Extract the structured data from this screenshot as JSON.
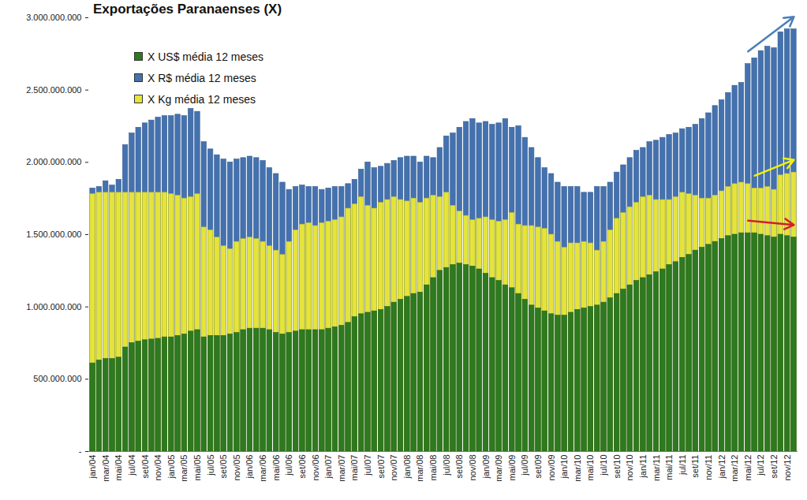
{
  "chart_data": {
    "type": "bar",
    "title": "Exportações Paranaenses (X)",
    "stacked": false,
    "grid": false,
    "legend": "top-left",
    "categories": [
      "jan/04",
      null,
      "mar/04",
      null,
      "mai/04",
      null,
      "jul/04",
      null,
      "set/04",
      null,
      "nov/04",
      null,
      "jan/05",
      null,
      "mar/05",
      null,
      "mai/05",
      null,
      "jul/05",
      null,
      "set/05",
      null,
      "nov/05",
      null,
      "jan/06",
      null,
      "mar/06",
      null,
      "mai/06",
      null,
      "jul/06",
      null,
      "set/06",
      null,
      "nov/06",
      null,
      "jan/07",
      null,
      "mar/07",
      null,
      "mai/07",
      null,
      "jul/07",
      null,
      "set/07",
      null,
      "nov/07",
      null,
      "jan/08",
      null,
      "mar/08",
      null,
      "mai/08",
      null,
      "jul/08",
      null,
      "set/08",
      null,
      "nov/08",
      null,
      "jan/09",
      null,
      "mar/09",
      null,
      "mai/09",
      null,
      "jul/09",
      null,
      "set/09",
      null,
      "nov/09",
      null,
      "jan/10",
      null,
      "mar/10",
      null,
      "mai/10",
      null,
      "jul/10",
      null,
      "set/10",
      null,
      "nov/10",
      null,
      "jan/11",
      null,
      "mar/11",
      null,
      "mai/11",
      null,
      "jul/11",
      null,
      "set/11",
      null,
      "nov/11",
      null,
      "jan/12",
      null,
      "mar/12",
      null,
      "mai/12",
      null,
      "jul/12",
      null,
      "set/12",
      null,
      "nov/12",
      null
    ],
    "series": [
      {
        "name": "X US$ média 12 meses",
        "color": "#2d7a1f",
        "values": [
          610000000,
          630000000,
          640000000,
          640000000,
          650000000,
          720000000,
          750000000,
          760000000,
          770000000,
          775000000,
          780000000,
          790000000,
          790000000,
          800000000,
          810000000,
          830000000,
          840000000,
          790000000,
          800000000,
          800000000,
          800000000,
          810000000,
          820000000,
          840000000,
          850000000,
          850000000,
          850000000,
          840000000,
          820000000,
          810000000,
          820000000,
          830000000,
          840000000,
          840000000,
          840000000,
          840000000,
          850000000,
          860000000,
          870000000,
          890000000,
          930000000,
          950000000,
          960000000,
          970000000,
          980000000,
          1000000000,
          1030000000,
          1050000000,
          1070000000,
          1090000000,
          1100000000,
          1150000000,
          1200000000,
          1250000000,
          1270000000,
          1290000000,
          1300000000,
          1290000000,
          1280000000,
          1260000000,
          1230000000,
          1200000000,
          1180000000,
          1150000000,
          1130000000,
          1090000000,
          1050000000,
          1010000000,
          990000000,
          970000000,
          950000000,
          940000000,
          940000000,
          960000000,
          980000000,
          990000000,
          1000000000,
          1010000000,
          1030000000,
          1060000000,
          1090000000,
          1120000000,
          1150000000,
          1180000000,
          1200000000,
          1220000000,
          1240000000,
          1260000000,
          1290000000,
          1310000000,
          1340000000,
          1360000000,
          1390000000,
          1410000000,
          1430000000,
          1450000000,
          1470000000,
          1490000000,
          1500000000,
          1510000000,
          1510000000,
          1510000000,
          1500000000,
          1490000000,
          1480000000,
          1500000000,
          1490000000,
          1480000000
        ]
      },
      {
        "name": "X R$ média 12 meses",
        "color": "#4472b0",
        "values": [
          1820000000,
          1830000000,
          1870000000,
          1840000000,
          1880000000,
          2120000000,
          2200000000,
          2240000000,
          2270000000,
          2290000000,
          2310000000,
          2320000000,
          2320000000,
          2330000000,
          2320000000,
          2370000000,
          2350000000,
          2140000000,
          2090000000,
          2050000000,
          2020000000,
          2000000000,
          2020000000,
          2030000000,
          2040000000,
          2030000000,
          2010000000,
          1960000000,
          1920000000,
          1860000000,
          1810000000,
          1830000000,
          1840000000,
          1830000000,
          1830000000,
          1810000000,
          1820000000,
          1830000000,
          1830000000,
          1850000000,
          1880000000,
          1950000000,
          2000000000,
          1960000000,
          1970000000,
          1990000000,
          2010000000,
          2030000000,
          2040000000,
          2040000000,
          2000000000,
          2040000000,
          2030000000,
          2100000000,
          2180000000,
          2200000000,
          2240000000,
          2280000000,
          2300000000,
          2270000000,
          2280000000,
          2260000000,
          2270000000,
          2300000000,
          2240000000,
          2250000000,
          2170000000,
          2100000000,
          2030000000,
          1960000000,
          1920000000,
          1860000000,
          1830000000,
          1830000000,
          1830000000,
          1790000000,
          1790000000,
          1830000000,
          1830000000,
          1860000000,
          1930000000,
          1980000000,
          2030000000,
          2080000000,
          2100000000,
          2140000000,
          2150000000,
          2170000000,
          2190000000,
          2200000000,
          2230000000,
          2240000000,
          2260000000,
          2300000000,
          2340000000,
          2390000000,
          2430000000,
          2480000000,
          2530000000,
          2550000000,
          2680000000,
          2720000000,
          2770000000,
          2800000000,
          2790000000,
          2900000000,
          2920000000,
          2920000000
        ]
      },
      {
        "name": "X Kg média 12 meses",
        "color": "#e4e43a",
        "values": [
          1780000000,
          1790000000,
          1790000000,
          1790000000,
          1790000000,
          1790000000,
          1790000000,
          1790000000,
          1790000000,
          1790000000,
          1790000000,
          1790000000,
          1780000000,
          1770000000,
          1750000000,
          1760000000,
          1780000000,
          1550000000,
          1530000000,
          1480000000,
          1420000000,
          1400000000,
          1450000000,
          1470000000,
          1480000000,
          1470000000,
          1450000000,
          1420000000,
          1390000000,
          1360000000,
          1450000000,
          1530000000,
          1570000000,
          1580000000,
          1560000000,
          1580000000,
          1590000000,
          1600000000,
          1620000000,
          1680000000,
          1710000000,
          1760000000,
          1700000000,
          1680000000,
          1720000000,
          1740000000,
          1760000000,
          1740000000,
          1730000000,
          1750000000,
          1720000000,
          1750000000,
          1770000000,
          1760000000,
          1790000000,
          1700000000,
          1660000000,
          1630000000,
          1600000000,
          1610000000,
          1620000000,
          1600000000,
          1590000000,
          1600000000,
          1650000000,
          1570000000,
          1560000000,
          1560000000,
          1550000000,
          1540000000,
          1500000000,
          1450000000,
          1410000000,
          1440000000,
          1440000000,
          1450000000,
          1440000000,
          1390000000,
          1450000000,
          1530000000,
          1610000000,
          1650000000,
          1690000000,
          1720000000,
          1760000000,
          1770000000,
          1740000000,
          1740000000,
          1740000000,
          1760000000,
          1790000000,
          1780000000,
          1770000000,
          1750000000,
          1750000000,
          1770000000,
          1800000000,
          1830000000,
          1850000000,
          1860000000,
          1850000000,
          1820000000,
          1820000000,
          1830000000,
          1810000000,
          1910000000,
          1920000000,
          1930000000
        ]
      }
    ],
    "ylim": [
      0,
      3000000000
    ],
    "yticks": [
      {
        "value": 0,
        "label": "-"
      },
      {
        "value": 500000000,
        "label": "500.000.000"
      },
      {
        "value": 1000000000,
        "label": "1.000.000.000"
      },
      {
        "value": 1500000000,
        "label": "1.500.000.000"
      },
      {
        "value": 2000000000,
        "label": "2.000.000.000"
      },
      {
        "value": 2500000000,
        "label": "2.500.000.000"
      },
      {
        "value": 3000000000,
        "label": "3.000.000.000"
      }
    ]
  }
}
